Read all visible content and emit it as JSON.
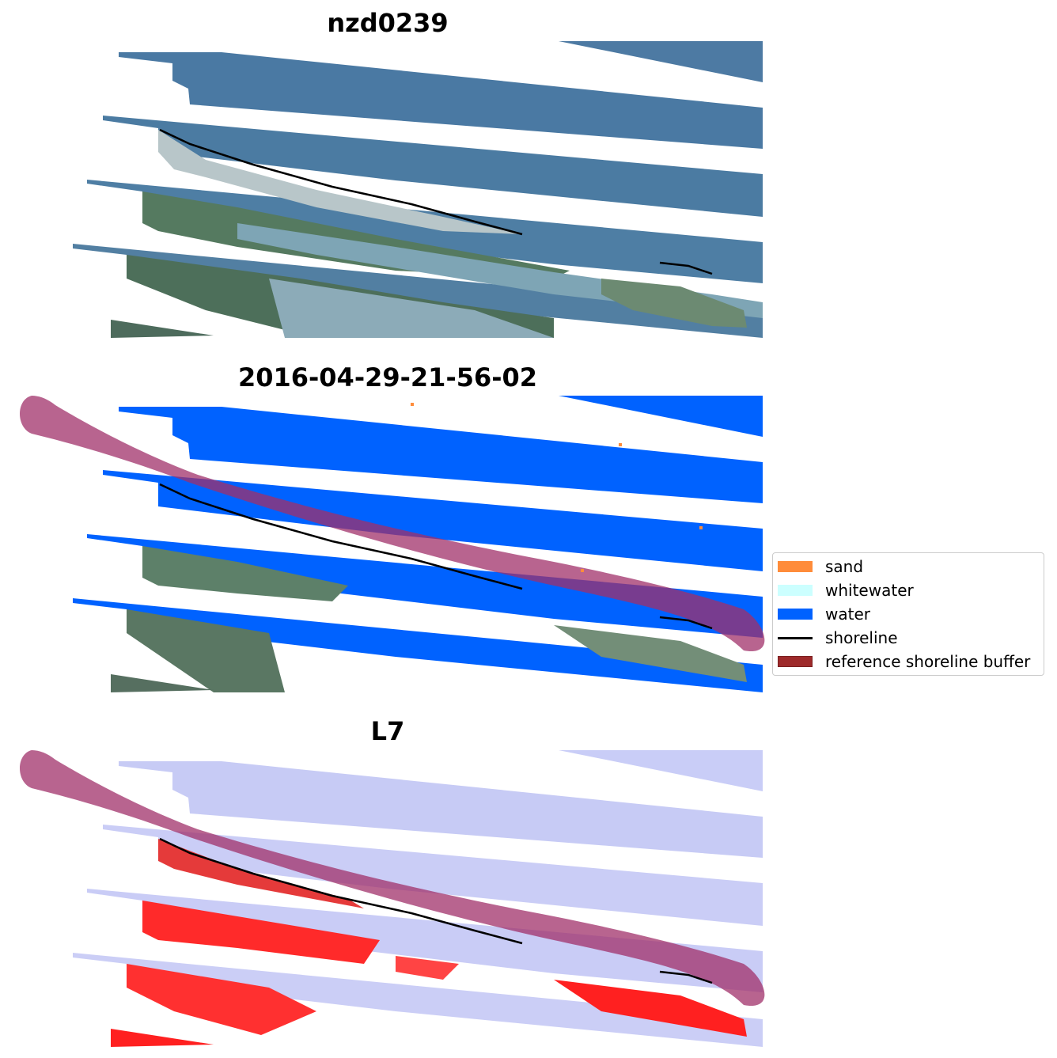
{
  "panels": [
    {
      "title": "nzd0239",
      "mode": "rgb"
    },
    {
      "title": "2016-04-29-21-56-02",
      "mode": "classified"
    },
    {
      "title": "L7",
      "mode": "index"
    }
  ],
  "legend": {
    "items": [
      {
        "label": "sand",
        "color": "#ff8c3a",
        "kind": "patch"
      },
      {
        "label": "whitewater",
        "color": "#ccffff",
        "kind": "patch"
      },
      {
        "label": "water",
        "color": "#0062ff",
        "kind": "patch"
      },
      {
        "label": "shoreline",
        "color": "#000000",
        "kind": "line"
      },
      {
        "label": "reference shoreline buffer",
        "color": "#9e2a2b",
        "kind": "patch"
      }
    ]
  },
  "colors": {
    "ocean_rgb": "#4a7aa4",
    "land_rgb": "#4d7058",
    "beach_rgb": "#c9d3d6",
    "lagoon_rgb": "#7ea3b7",
    "water_class": "#0062ff",
    "buffer_overlay": "#a0306a",
    "index_water": "#c9cdf7",
    "index_land": "#ff2a2a",
    "shoreline": "#000000"
  }
}
